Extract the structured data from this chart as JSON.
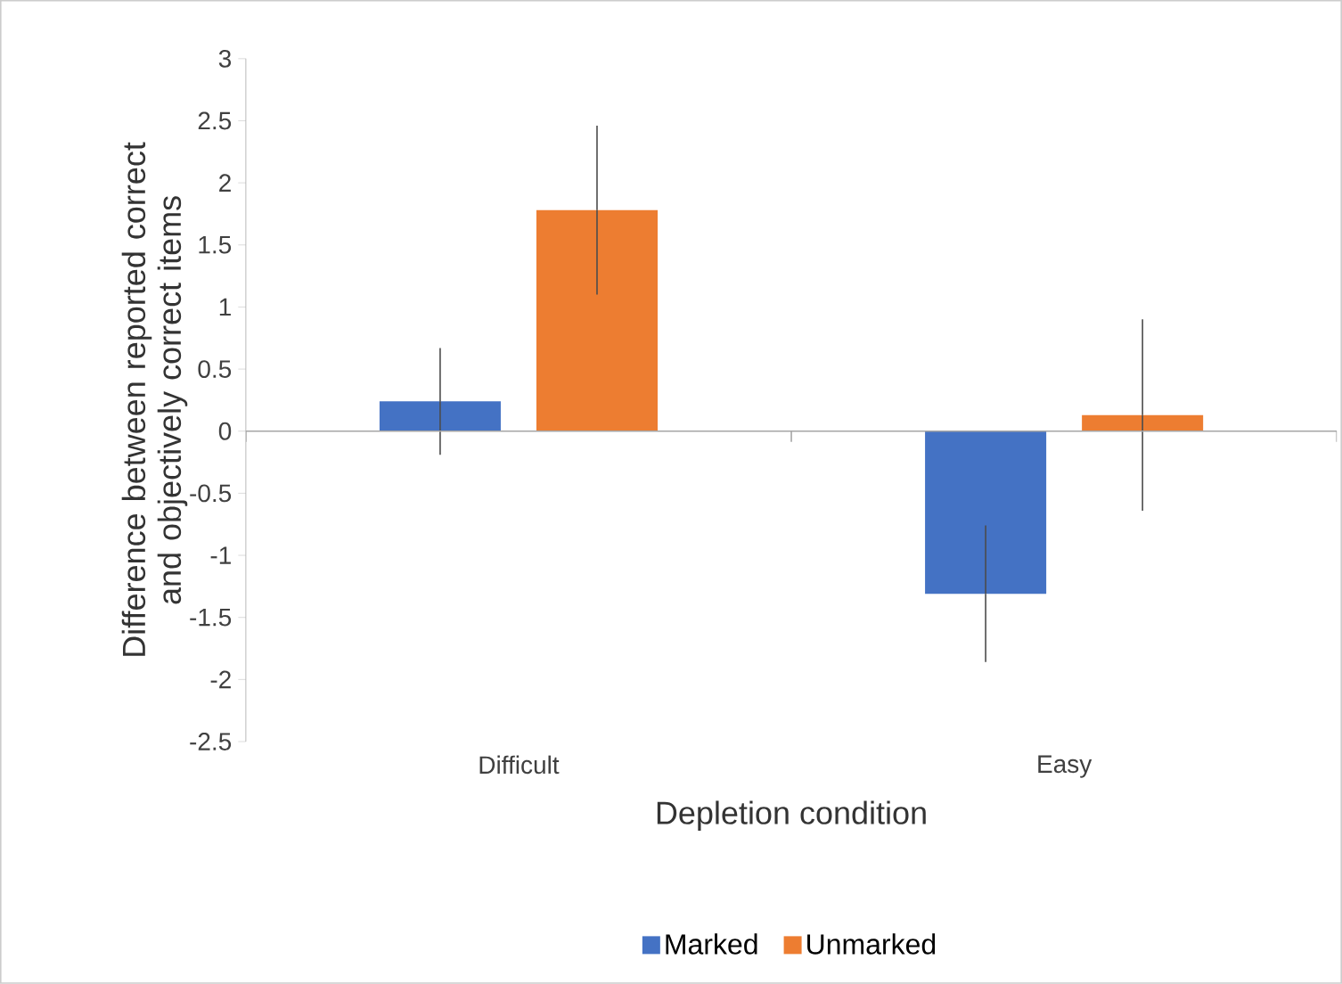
{
  "chart_data": {
    "type": "bar",
    "xlabel": "Depletion condition",
    "ylabel": "Difference between reported correct and objectively correct items",
    "categories": [
      "Difficult",
      "Easy"
    ],
    "series": [
      {
        "name": "Marked",
        "color": "#4472c4",
        "values": [
          0.24,
          -1.31
        ],
        "errors": [
          0.43,
          0.55
        ]
      },
      {
        "name": "Unmarked",
        "color": "#ed7d31",
        "values": [
          1.78,
          0.13
        ],
        "errors": [
          0.68,
          0.77
        ]
      }
    ],
    "ylim": [
      -2.5,
      3
    ],
    "yticks": [
      -2.5,
      -2,
      -1.5,
      -1,
      -0.5,
      0,
      0.5,
      1,
      1.5,
      2,
      2.5,
      3
    ],
    "legend": "bottom"
  }
}
